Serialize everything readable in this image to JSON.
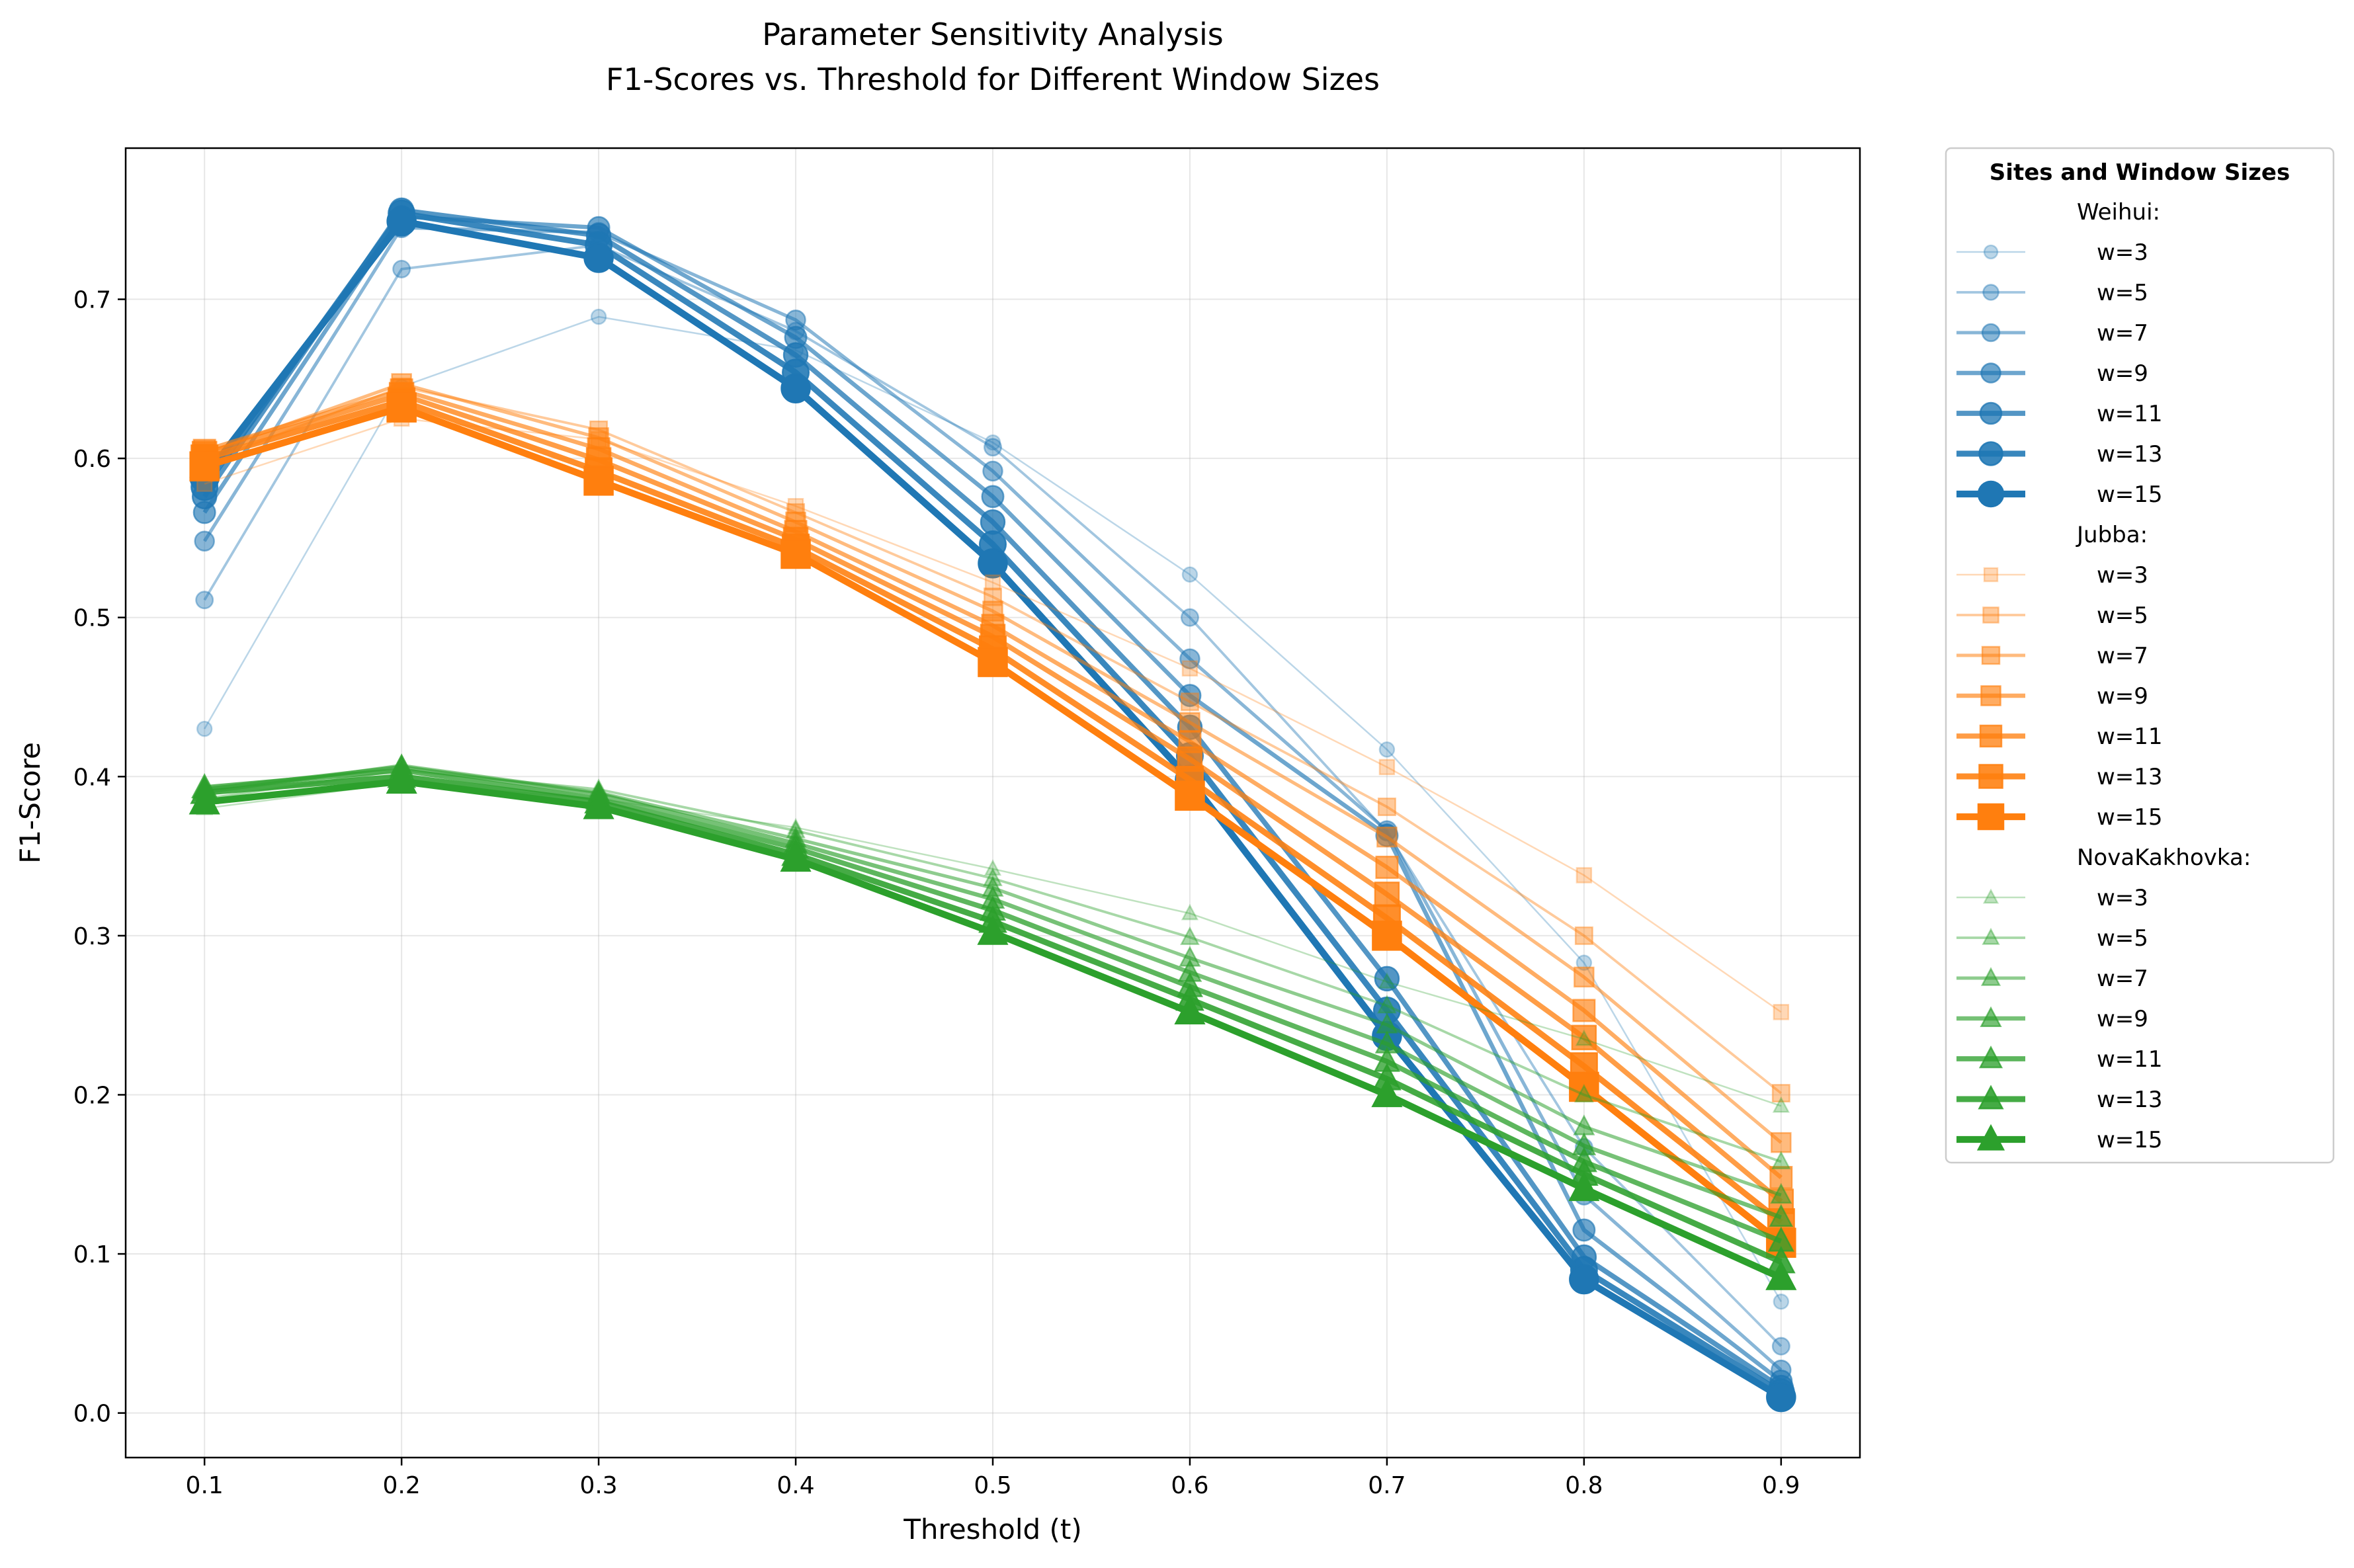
{
  "chart_data": {
    "type": "line",
    "title": "Parameter Sensitivity Analysis",
    "subtitle": "F1-Scores vs. Threshold for Different Window Sizes",
    "xlabel": "Threshold (t)",
    "ylabel": "F1-Score",
    "x": [
      0.1,
      0.2,
      0.3,
      0.4,
      0.5,
      0.6,
      0.7,
      0.8,
      0.9
    ],
    "x_tick_labels": [
      "0.1",
      "0.2",
      "0.3",
      "0.4",
      "0.5",
      "0.6",
      "0.7",
      "0.8",
      "0.9"
    ],
    "xlim": [
      0.06,
      0.94
    ],
    "ylim": [
      -0.028,
      0.795
    ],
    "y_ticks": [
      0.0,
      0.1,
      0.2,
      0.3,
      0.4,
      0.5,
      0.6,
      0.7
    ],
    "y_tick_labels": [
      "0.0",
      "0.1",
      "0.2",
      "0.3",
      "0.4",
      "0.5",
      "0.6",
      "0.7"
    ],
    "grid": true,
    "legend": {
      "title": "Sites and Window Sizes",
      "placement": "outside-right-top"
    },
    "sites": [
      {
        "name": "Weihui",
        "legend_label": "Weihui:",
        "color": "#1f77b4",
        "marker": "circle",
        "series": [
          {
            "name": "w=3",
            "values": [
              0.43,
              0.645,
              0.689,
              0.668,
              0.61,
              0.527,
              0.417,
              0.283,
              0.07
            ]
          },
          {
            "name": "w=5",
            "values": [
              0.511,
              0.719,
              0.734,
              0.68,
              0.607,
              0.5,
              0.365,
              0.167,
              0.042
            ]
          },
          {
            "name": "w=7",
            "values": [
              0.548,
              0.745,
              0.742,
              0.687,
              0.592,
              0.474,
              0.366,
              0.137,
              0.027
            ]
          },
          {
            "name": "w=9",
            "values": [
              0.566,
              0.752,
              0.745,
              0.676,
              0.576,
              0.451,
              0.363,
              0.115,
              0.02
            ]
          },
          {
            "name": "w=11",
            "values": [
              0.576,
              0.756,
              0.74,
              0.665,
              0.56,
              0.431,
              0.273,
              0.098,
              0.016
            ]
          },
          {
            "name": "w=13",
            "values": [
              0.582,
              0.754,
              0.734,
              0.654,
              0.546,
              0.413,
              0.253,
              0.09,
              0.013
            ]
          },
          {
            "name": "w=15",
            "values": [
              0.588,
              0.749,
              0.726,
              0.644,
              0.534,
              0.398,
              0.237,
              0.084,
              0.01
            ]
          }
        ]
      },
      {
        "name": "Jubba",
        "legend_label": "Jubba:",
        "color": "#ff7f0e",
        "marker": "square",
        "series": [
          {
            "name": "w=3",
            "values": [
              0.584,
              0.625,
              0.612,
              0.57,
              0.522,
              0.468,
              0.406,
              0.338,
              0.252
            ]
          },
          {
            "name": "w=5",
            "values": [
              0.597,
              0.645,
              0.618,
              0.566,
              0.513,
              0.447,
              0.381,
              0.3,
              0.201
            ]
          },
          {
            "name": "w=7",
            "values": [
              0.603,
              0.647,
              0.613,
              0.56,
              0.504,
              0.434,
              0.362,
              0.274,
              0.17
            ]
          },
          {
            "name": "w=9",
            "values": [
              0.605,
              0.643,
              0.606,
              0.554,
              0.495,
              0.422,
              0.343,
              0.253,
              0.148
            ]
          },
          {
            "name": "w=11",
            "values": [
              0.603,
              0.64,
              0.599,
              0.549,
              0.488,
              0.411,
              0.326,
              0.236,
              0.133
            ]
          },
          {
            "name": "w=13",
            "values": [
              0.6,
              0.636,
              0.592,
              0.544,
              0.48,
              0.398,
              0.311,
              0.218,
              0.12
            ]
          },
          {
            "name": "w=15",
            "values": [
              0.595,
              0.632,
              0.586,
              0.54,
              0.472,
              0.388,
              0.3,
              0.205,
              0.107
            ]
          }
        ]
      },
      {
        "name": "NovaKakhovka",
        "legend_label": "NovaKakhovka:",
        "color": "#2ca02c",
        "marker": "triangle",
        "series": [
          {
            "name": "w=3",
            "values": [
              0.38,
              0.396,
              0.386,
              0.368,
              0.342,
              0.314,
              0.271,
              0.235,
              0.193
            ]
          },
          {
            "name": "w=5",
            "values": [
              0.386,
              0.404,
              0.392,
              0.366,
              0.336,
              0.299,
              0.256,
              0.2,
              0.158
            ]
          },
          {
            "name": "w=7",
            "values": [
              0.39,
              0.407,
              0.39,
              0.361,
              0.33,
              0.286,
              0.244,
              0.18,
              0.137
            ]
          },
          {
            "name": "w=9",
            "values": [
              0.392,
              0.406,
              0.389,
              0.358,
              0.323,
              0.277,
              0.232,
              0.168,
              0.123
            ]
          },
          {
            "name": "w=11",
            "values": [
              0.393,
              0.404,
              0.386,
              0.355,
              0.316,
              0.268,
              0.221,
              0.158,
              0.108
            ]
          },
          {
            "name": "w=13",
            "values": [
              0.39,
              0.4,
              0.384,
              0.351,
              0.309,
              0.26,
              0.21,
              0.15,
              0.095
            ]
          },
          {
            "name": "w=15",
            "values": [
              0.384,
              0.397,
              0.381,
              0.348,
              0.302,
              0.252,
              0.2,
              0.141,
              0.085
            ]
          }
        ]
      }
    ]
  }
}
